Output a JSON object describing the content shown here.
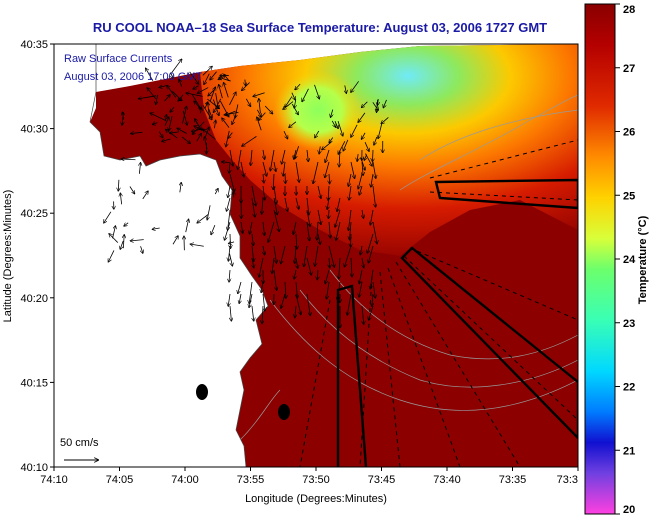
{
  "title": "RU COOL  NOAA–18  Sea Surface Temperature:  August 03, 2006 1727 GMT",
  "overlay": {
    "line1": "Raw Surface Currents",
    "line2": "August 03, 2006 17:00 GMT",
    "scale_label": "50 cm/s"
  },
  "axes": {
    "xlabel": "Longitude (Degrees:Minutes)",
    "ylabel": "Latitude (Degrees:Minutes)",
    "xticks": [
      "74:10",
      "74:05",
      "74:00",
      "73:55",
      "73:50",
      "73:45",
      "73:40",
      "73:35",
      "73:3"
    ],
    "yticks": [
      "40:35",
      "40:30",
      "40:25",
      "40:20",
      "40:15",
      "40:10"
    ]
  },
  "colorbar": {
    "label": "Temperature (°C)",
    "ticks": [
      "28",
      "27",
      "26",
      "25",
      "24",
      "23",
      "22",
      "21",
      "20"
    ],
    "min": 20,
    "max": 28
  },
  "colors": {
    "title": "#1a1aa6",
    "land": "#ffffff",
    "warm": "#8c0000",
    "cool": "#7be0ff"
  }
}
